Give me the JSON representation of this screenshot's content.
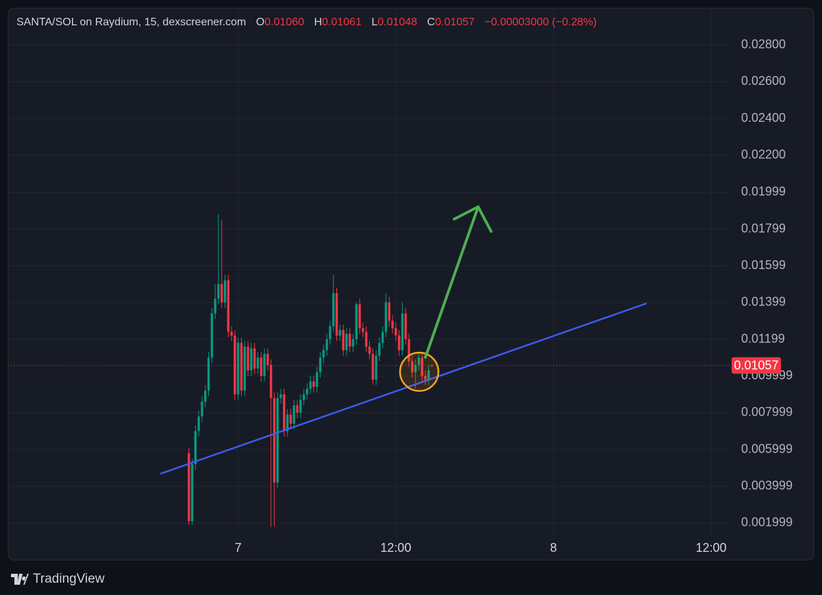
{
  "chart_data": {
    "type": "candlestick",
    "title": "SANTA/SOL on Raydium, 15, dexscreener.com",
    "ohlc_labels": [
      "O",
      "H",
      "L",
      "C"
    ],
    "ohlc_values": [
      "0.01060",
      "0.01061",
      "0.01048",
      "0.01057"
    ],
    "change": "−0.00003000 (−0.28%)",
    "up_color": "#089981",
    "down_color": "#f23645",
    "grid": true,
    "xlim": [
      6.5,
      61.4
    ],
    "xticks": [
      {
        "value": 24,
        "label": "7"
      },
      {
        "value": 36,
        "label": "12:00"
      },
      {
        "value": 48,
        "label": "8"
      },
      {
        "value": 60,
        "label": "12:00"
      }
    ],
    "ylim": [
      0.0014,
      0.03
    ],
    "yticks": [
      {
        "value": 0.001999,
        "label": "0.001999"
      },
      {
        "value": 0.003999,
        "label": "0.003999"
      },
      {
        "value": 0.005999,
        "label": "0.005999"
      },
      {
        "value": 0.007999,
        "label": "0.007999"
      },
      {
        "value": 0.009999,
        "label": "0.009999"
      },
      {
        "value": 0.01199,
        "label": "0.01199"
      },
      {
        "value": 0.01399,
        "label": "0.01399"
      },
      {
        "value": 0.01599,
        "label": "0.01599"
      },
      {
        "value": 0.01799,
        "label": "0.01799"
      },
      {
        "value": 0.01999,
        "label": "0.01999"
      },
      {
        "value": 0.022,
        "label": "0.02200"
      },
      {
        "value": 0.024,
        "label": "0.02400"
      },
      {
        "value": 0.026,
        "label": "0.02600"
      },
      {
        "value": 0.028,
        "label": "0.02800"
      }
    ],
    "x": [
      20.25,
      20.5,
      20.75,
      21,
      21.25,
      21.5,
      21.75,
      22,
      22.25,
      22.5,
      22.75,
      23,
      23.25,
      23.5,
      23.75,
      24,
      24.25,
      24.5,
      24.75,
      25,
      25.25,
      25.5,
      25.75,
      26,
      26.25,
      26.5,
      26.75,
      27,
      27.25,
      27.5,
      27.75,
      28,
      28.25,
      28.5,
      28.75,
      29,
      29.25,
      29.5,
      29.75,
      30,
      30.25,
      30.5,
      30.75,
      31,
      31.25,
      31.5,
      31.75,
      32,
      32.25,
      32.5,
      32.75,
      33,
      33.25,
      33.5,
      33.75,
      34,
      34.25,
      34.5,
      34.75,
      35,
      35.25,
      35.5,
      35.75,
      36,
      36.25,
      36.5,
      36.75,
      37,
      37.25,
      37.5,
      37.75,
      38,
      38.25,
      38.5,
      38.75
    ],
    "open": [
      0.0058,
      0.0021,
      0.0052,
      0.007,
      0.0078,
      0.0086,
      0.0092,
      0.011,
      0.0134,
      0.0142,
      0.015,
      0.014,
      0.0152,
      0.0124,
      0.0122,
      0.009,
      0.0118,
      0.0092,
      0.0116,
      0.0103,
      0.0115,
      0.0104,
      0.011,
      0.01,
      0.0112,
      0.0106,
      0.0088,
      0.0042,
      0.0088,
      0.009,
      0.007,
      0.0079,
      0.0074,
      0.0084,
      0.008,
      0.0087,
      0.009,
      0.0093,
      0.0097,
      0.0094,
      0.0102,
      0.011,
      0.0114,
      0.012,
      0.0127,
      0.0145,
      0.0122,
      0.0125,
      0.0114,
      0.0123,
      0.0116,
      0.012,
      0.0139,
      0.0126,
      0.0124,
      0.0116,
      0.0112,
      0.0098,
      0.0111,
      0.0118,
      0.0124,
      0.014,
      0.013,
      0.0126,
      0.0122,
      0.0114,
      0.0134,
      0.012,
      0.0108,
      0.0102,
      0.0106,
      0.011,
      0.01,
      0.0098,
      0.0106
    ],
    "high": [
      0.0061,
      0.0055,
      0.0073,
      0.0081,
      0.0089,
      0.0095,
      0.0113,
      0.0137,
      0.015,
      0.0188,
      0.0185,
      0.0155,
      0.0155,
      0.0127,
      0.0125,
      0.0121,
      0.0121,
      0.0119,
      0.0119,
      0.0118,
      0.0118,
      0.0113,
      0.0113,
      0.0115,
      0.0115,
      0.0109,
      0.0091,
      0.0091,
      0.0093,
      0.0093,
      0.0082,
      0.0082,
      0.0087,
      0.0087,
      0.009,
      0.0093,
      0.0096,
      0.01,
      0.01,
      0.0105,
      0.0113,
      0.0117,
      0.0123,
      0.013,
      0.0155,
      0.0148,
      0.0128,
      0.0128,
      0.0126,
      0.0126,
      0.0123,
      0.014,
      0.0142,
      0.0129,
      0.0127,
      0.0119,
      0.0115,
      0.0114,
      0.0121,
      0.0127,
      0.0145,
      0.0143,
      0.0133,
      0.0129,
      0.0125,
      0.014,
      0.0137,
      0.0123,
      0.0111,
      0.0109,
      0.0113,
      0.0113,
      0.0103,
      0.0106,
      0.01061
    ],
    "low": [
      0.0019,
      0.0019,
      0.0049,
      0.0067,
      0.0075,
      0.0083,
      0.0089,
      0.0107,
      0.0131,
      0.0139,
      0.0137,
      0.0137,
      0.0121,
      0.0119,
      0.0087,
      0.0087,
      0.0089,
      0.0089,
      0.01,
      0.01,
      0.0101,
      0.0101,
      0.0097,
      0.0097,
      0.0103,
      0.0018,
      0.0018,
      0.0039,
      0.0085,
      0.0067,
      0.0067,
      0.0071,
      0.0071,
      0.0077,
      0.0077,
      0.0084,
      0.0087,
      0.009,
      0.0091,
      0.0091,
      0.0099,
      0.0107,
      0.0111,
      0.0117,
      0.0124,
      0.0119,
      0.0119,
      0.0111,
      0.0111,
      0.0113,
      0.0113,
      0.0117,
      0.0123,
      0.0121,
      0.0113,
      0.0109,
      0.0095,
      0.0095,
      0.0108,
      0.0115,
      0.0121,
      0.0127,
      0.0123,
      0.0119,
      0.0111,
      0.0111,
      0.0117,
      0.0105,
      0.0099,
      0.0093,
      0.0103,
      0.0097,
      0.0095,
      0.0095,
      0.01048
    ],
    "close": [
      0.0021,
      0.0052,
      0.007,
      0.0078,
      0.0086,
      0.0092,
      0.011,
      0.0134,
      0.0142,
      0.015,
      0.014,
      0.0152,
      0.0124,
      0.0122,
      0.009,
      0.0118,
      0.0092,
      0.0116,
      0.0103,
      0.0115,
      0.0104,
      0.011,
      0.01,
      0.0112,
      0.0106,
      0.0088,
      0.0042,
      0.0088,
      0.009,
      0.007,
      0.0079,
      0.0074,
      0.0084,
      0.008,
      0.0087,
      0.009,
      0.0093,
      0.0097,
      0.0094,
      0.0102,
      0.011,
      0.0114,
      0.012,
      0.0127,
      0.0145,
      0.0122,
      0.0125,
      0.0114,
      0.0123,
      0.0116,
      0.012,
      0.0139,
      0.0126,
      0.0124,
      0.0116,
      0.0112,
      0.0098,
      0.0111,
      0.0118,
      0.0124,
      0.014,
      0.013,
      0.0126,
      0.0122,
      0.0114,
      0.0134,
      0.012,
      0.0108,
      0.0102,
      0.0106,
      0.011,
      0.01,
      0.0098,
      0.0103,
      0.01057
    ]
  },
  "branding": "TradingView"
}
